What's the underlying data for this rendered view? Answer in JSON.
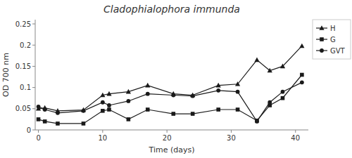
{
  "chart_data": {
    "type": "line",
    "title": "Cladophialophora immunda",
    "x_label": "Time (days)",
    "y_label": "OD 700 nm",
    "x": [
      0,
      1,
      3,
      7,
      10,
      11,
      14,
      17,
      21,
      24,
      28,
      31,
      34,
      36,
      38,
      41
    ],
    "series": [
      {
        "name": "H",
        "marker": "triangle",
        "values": [
          0.05,
          0.052,
          0.045,
          0.047,
          0.082,
          0.085,
          0.09,
          0.105,
          0.085,
          0.082,
          0.105,
          0.108,
          0.165,
          0.14,
          0.15,
          0.198
        ]
      },
      {
        "name": "G",
        "marker": "square",
        "values": [
          0.025,
          0.02,
          0.015,
          0.015,
          0.045,
          0.048,
          0.025,
          0.048,
          0.038,
          0.038,
          0.048,
          0.048,
          0.022,
          0.058,
          0.075,
          0.13
        ]
      },
      {
        "name": "GVT",
        "marker": "circle",
        "values": [
          0.055,
          0.048,
          0.04,
          0.045,
          0.065,
          0.058,
          0.068,
          0.085,
          0.082,
          0.08,
          0.093,
          0.09,
          0.02,
          0.065,
          0.09,
          0.112
        ]
      }
    ],
    "color": "#1a1a1a",
    "xlim": [
      -0.5,
      42
    ],
    "ylim": [
      0,
      0.26
    ],
    "xticks": [
      0,
      10,
      20,
      30,
      40
    ],
    "yticks": [
      0,
      0.05,
      0.1,
      0.15,
      0.2,
      0.25
    ],
    "grid": false,
    "legend": "upper right"
  }
}
